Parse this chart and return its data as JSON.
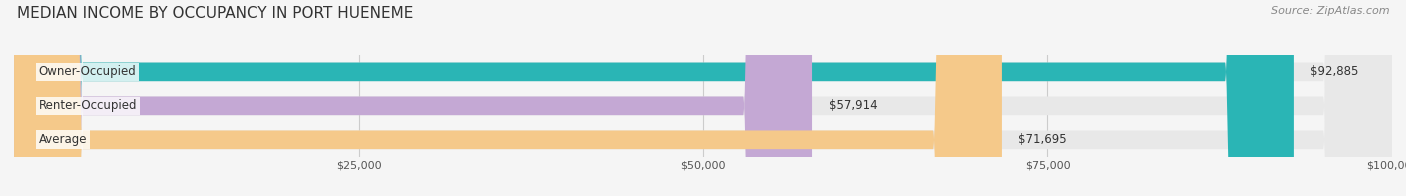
{
  "title": "MEDIAN INCOME BY OCCUPANCY IN PORT HUENEME",
  "source": "Source: ZipAtlas.com",
  "categories": [
    "Owner-Occupied",
    "Renter-Occupied",
    "Average"
  ],
  "values": [
    92885,
    57914,
    71695
  ],
  "bar_colors": [
    "#2ab5b5",
    "#c4a8d4",
    "#f5c98a"
  ],
  "value_labels": [
    "$92,885",
    "$57,914",
    "$71,695"
  ],
  "xlim": [
    0,
    100000
  ],
  "background_color": "#f5f5f5",
  "bar_background_color": "#e8e8e8",
  "title_fontsize": 11,
  "source_fontsize": 8,
  "bar_height": 0.55,
  "figsize": [
    14.06,
    1.96
  ],
  "dpi": 100
}
